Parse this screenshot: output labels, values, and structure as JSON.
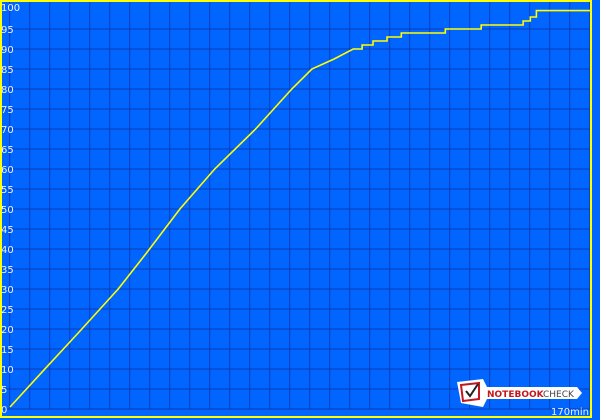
{
  "chart_data": {
    "type": "line",
    "title": "",
    "xlabel": "",
    "ylabel": "",
    "x_unit_label": "170min",
    "xlim": [
      0,
      170
    ],
    "ylim": [
      0,
      100
    ],
    "y_ticks": [
      0,
      5,
      10,
      15,
      20,
      25,
      30,
      35,
      40,
      45,
      50,
      55,
      60,
      65,
      70,
      75,
      80,
      85,
      90,
      95,
      100
    ],
    "grid": true,
    "legend": "none",
    "series": [
      {
        "points": [
          [
            0,
            0.5
          ],
          [
            10,
            9.8
          ],
          [
            20,
            19
          ],
          [
            31.7,
            30
          ],
          [
            40,
            39
          ],
          [
            49.8,
            50
          ],
          [
            60,
            60
          ],
          [
            72,
            70
          ],
          [
            82.6,
            80
          ],
          [
            88.5,
            85
          ],
          [
            95,
            87.5
          ],
          [
            100.6,
            90
          ],
          [
            103.2,
            90
          ],
          [
            103.2,
            91
          ],
          [
            106.4,
            91
          ],
          [
            106.4,
            92
          ],
          [
            110.5,
            92
          ],
          [
            110.5,
            93
          ],
          [
            114.7,
            93
          ],
          [
            114.7,
            94
          ],
          [
            127.6,
            94
          ],
          [
            127.6,
            95
          ],
          [
            138.1,
            95
          ],
          [
            138.1,
            96
          ],
          [
            150.4,
            96
          ],
          [
            150.4,
            97
          ],
          [
            152.5,
            97
          ],
          [
            152.5,
            98
          ],
          [
            154.3,
            98
          ],
          [
            154.3,
            99.6
          ],
          [
            170,
            99.6
          ]
        ]
      }
    ],
    "colors": {
      "background": "#0066ff",
      "grid": "#0a3cb4",
      "line": "#ffff00",
      "frame": "#ffff00",
      "text": "#eef2ff"
    }
  },
  "watermark": {
    "logo_text": "NOTEBOOKCHECK"
  }
}
